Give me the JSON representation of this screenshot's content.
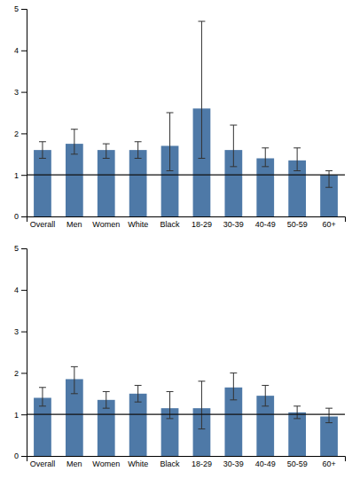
{
  "chart_data": [
    {
      "type": "bar",
      "categories": [
        "Overall",
        "Men",
        "Women",
        "White",
        "Black",
        "18-29",
        "30-39",
        "40-49",
        "50-59",
        "60+"
      ],
      "values": [
        1.6,
        1.75,
        1.6,
        1.6,
        1.7,
        2.6,
        1.6,
        1.4,
        1.35,
        1.0
      ],
      "ci_low": [
        1.4,
        1.5,
        1.4,
        1.4,
        1.1,
        1.4,
        1.2,
        1.2,
        1.1,
        0.7
      ],
      "ci_high": [
        1.8,
        2.1,
        1.75,
        1.8,
        2.5,
        4.7,
        2.2,
        1.65,
        1.65,
        1.1
      ],
      "hline": 1.0,
      "ylim": [
        0,
        5
      ],
      "yticks": [
        0,
        1,
        2,
        3,
        4,
        5
      ],
      "grid": false
    },
    {
      "type": "bar",
      "categories": [
        "Overall",
        "Men",
        "Women",
        "White",
        "Black",
        "18-29",
        "30-39",
        "40-49",
        "50-59",
        "60+"
      ],
      "values": [
        1.4,
        1.85,
        1.35,
        1.5,
        1.15,
        1.15,
        1.65,
        1.45,
        1.05,
        0.95
      ],
      "ci_low": [
        1.2,
        1.5,
        1.15,
        1.3,
        0.9,
        0.65,
        1.35,
        1.2,
        0.9,
        0.8
      ],
      "ci_high": [
        1.65,
        2.15,
        1.55,
        1.7,
        1.55,
        1.8,
        2.0,
        1.7,
        1.2,
        1.15
      ],
      "hline": 1.0,
      "ylim": [
        0,
        5
      ],
      "yticks": [
        0,
        1,
        2,
        3,
        4,
        5
      ],
      "grid": false
    }
  ]
}
